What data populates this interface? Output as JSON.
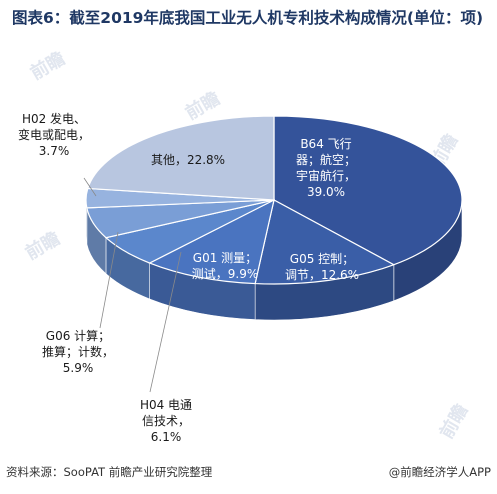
{
  "title": "图表6：截至2019年底我国工业无人机专利技术构成情况(单位：项)",
  "footer": {
    "source": "资料来源：SooPAT 前瞻产业研究院整理",
    "brand": "@前瞻经济学人APP"
  },
  "chart_data": {
    "type": "pie",
    "title": "图表6：截至2019年底我国工业无人机专利技术构成情况(单位：项)",
    "unit": "项",
    "slices": [
      {
        "label": "B64 飞行器；航空；宇宙航行",
        "value": 39.0,
        "label_lines": [
          "B64 飞行",
          "器；航空；",
          "宇宙航行，",
          "39.0%"
        ],
        "color": "#34539a"
      },
      {
        "label": "G05 控制；调节",
        "value": 12.6,
        "label_lines": [
          "G05 控制；",
          "调节，12.6%"
        ],
        "color": "#3a5ea7"
      },
      {
        "label": "G01 测量；测试",
        "value": 9.9,
        "label_lines": [
          "G01 测量；",
          "测试，9.9%"
        ],
        "color": "#4a74c0"
      },
      {
        "label": "H04 电通信技术",
        "value": 6.1,
        "label_lines": [
          "H04 电通",
          "信技术，",
          "6.1%"
        ],
        "color": "#5b87cc"
      },
      {
        "label": "G06 计算；推算；计数",
        "value": 5.9,
        "label_lines": [
          "G06 计算；",
          "推算；计数，",
          "5.9%"
        ],
        "color": "#7a9ed6"
      },
      {
        "label": "H02 发电、变电或配电",
        "value": 3.7,
        "label_lines": [
          "H02 发电、",
          "变电或配电，",
          "3.7%"
        ],
        "color": "#97b3df"
      },
      {
        "label": "其他",
        "value": 22.8,
        "label_lines": [
          "其他，22.8%"
        ],
        "color": "#b8c6e0"
      }
    ]
  }
}
